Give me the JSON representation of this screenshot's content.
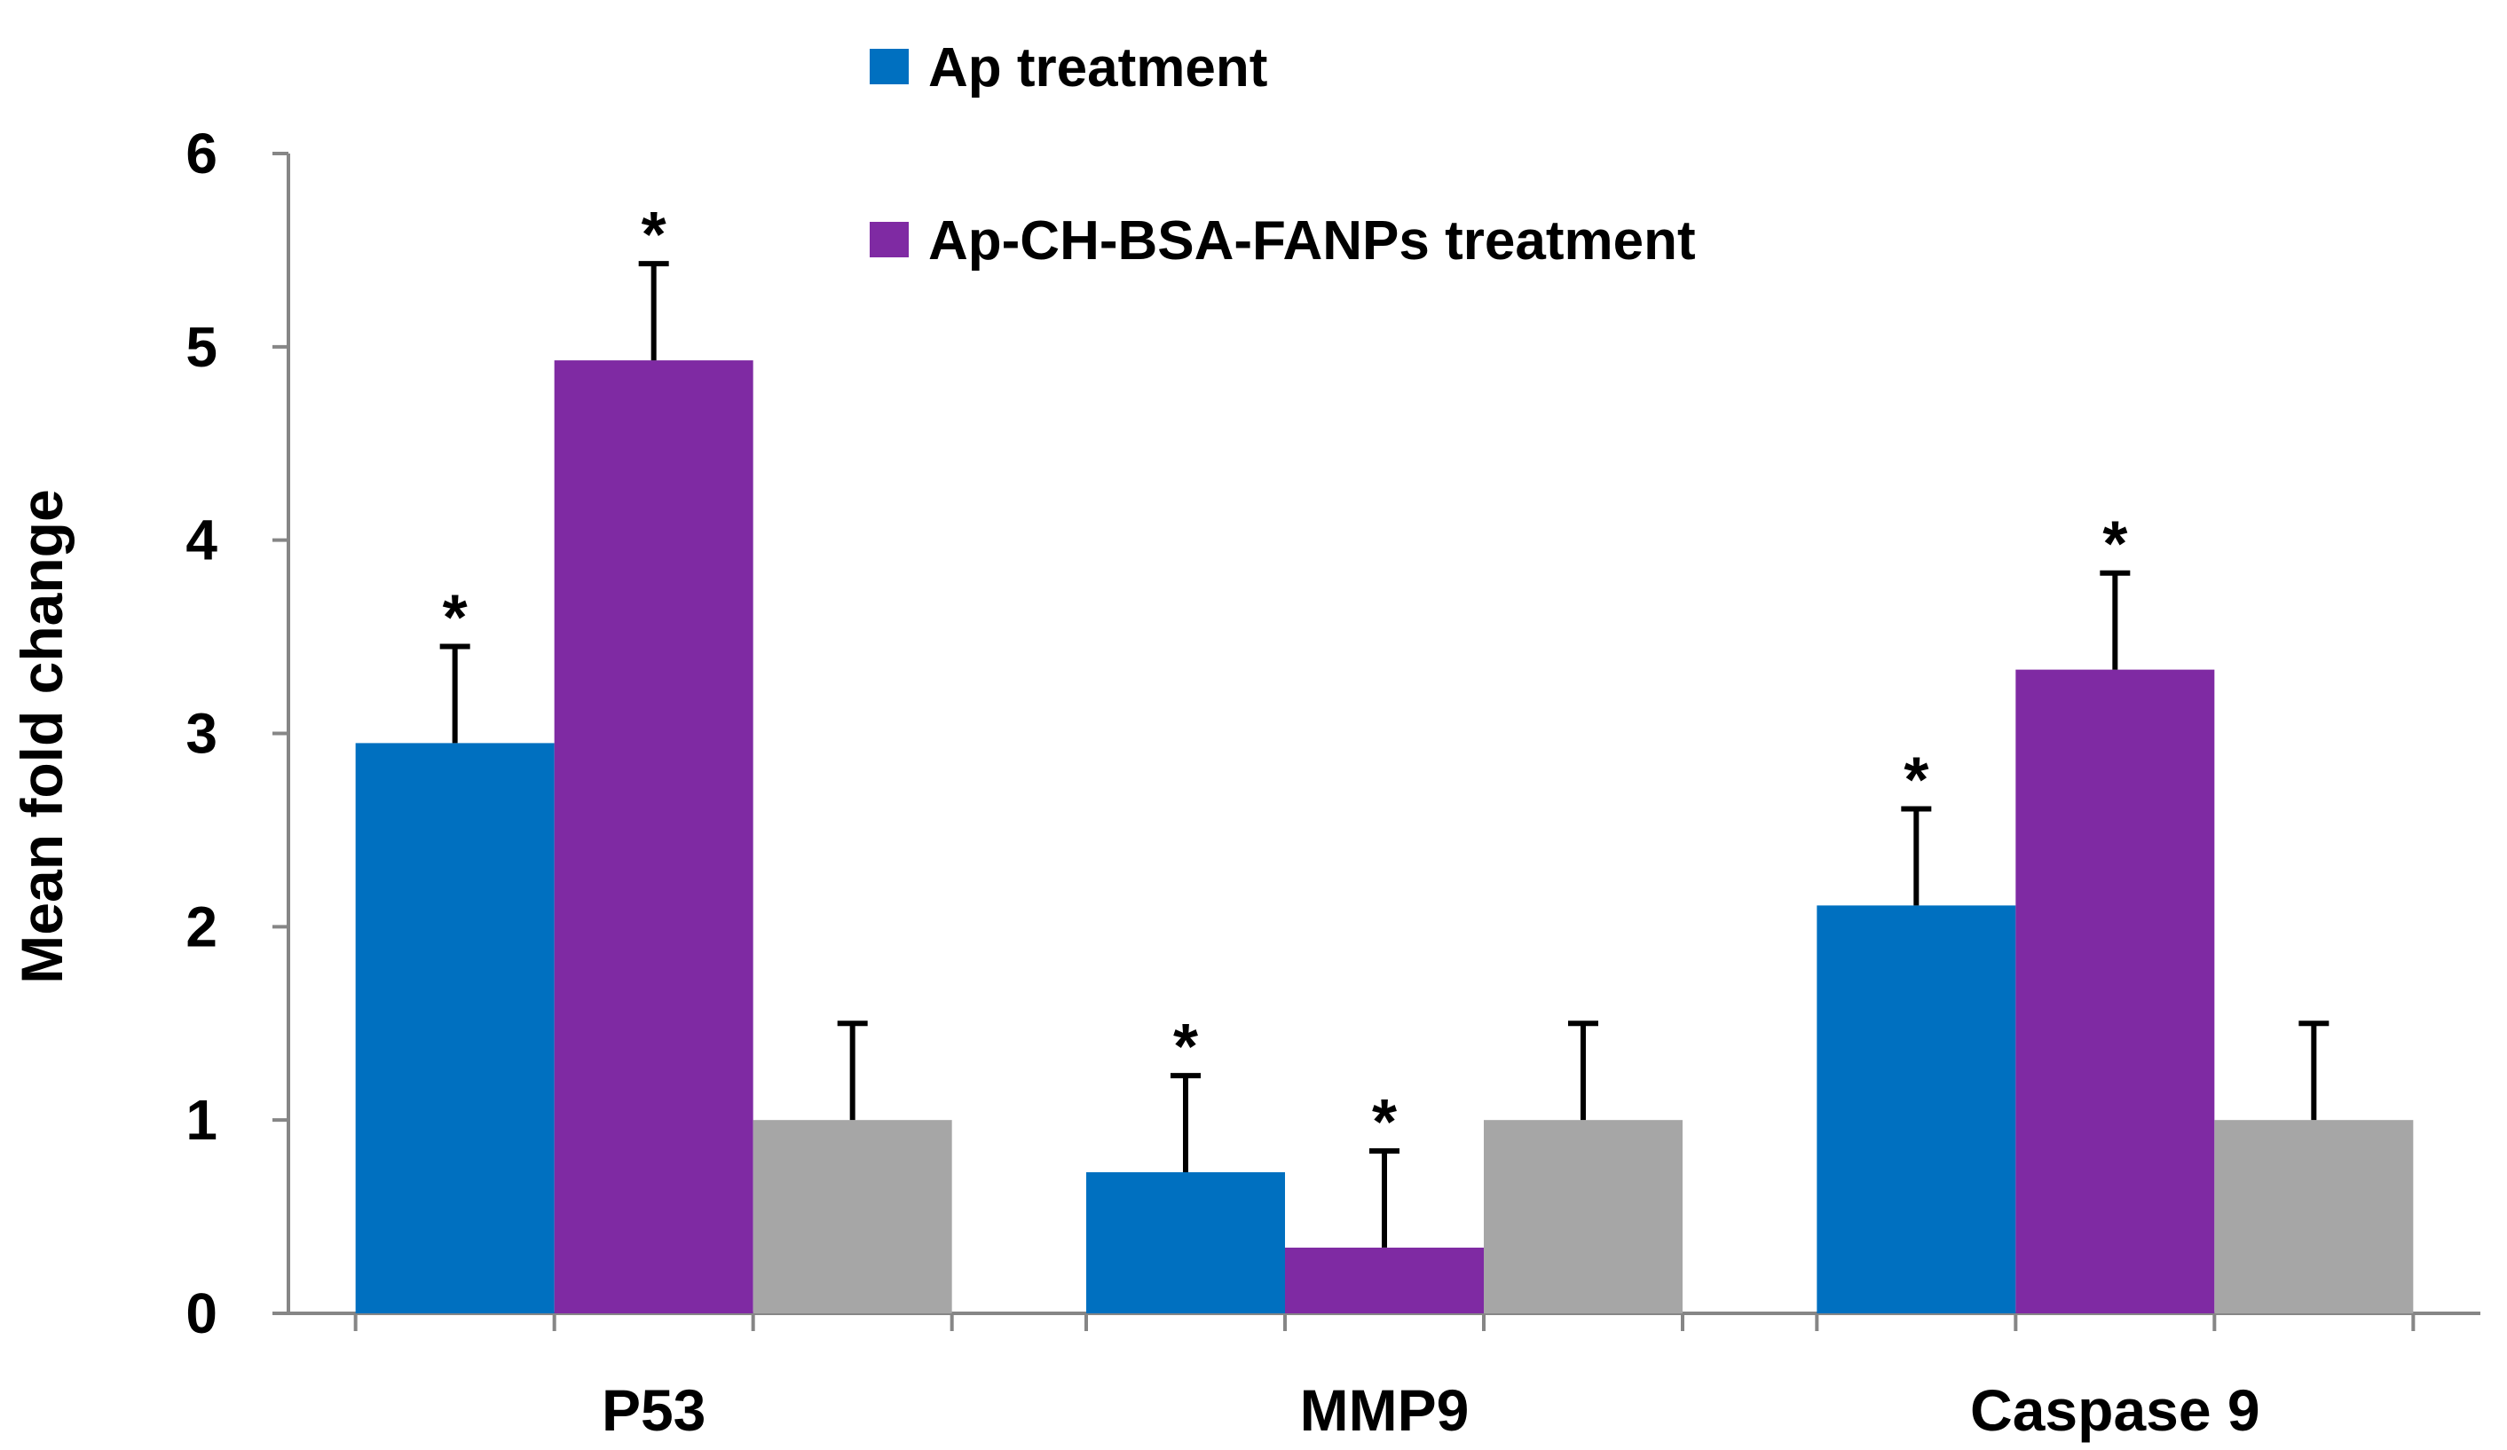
{
  "chart_data": {
    "type": "bar",
    "title": "",
    "xlabel": "",
    "ylabel": "Mean fold change",
    "ylim": [
      0,
      6
    ],
    "yticks": [
      0,
      1,
      2,
      3,
      4,
      5,
      6
    ],
    "grid": false,
    "legend_position": "top",
    "categories": [
      "P53",
      "MMP9",
      "Caspase 9"
    ],
    "series": [
      {
        "name": "Ap treatment",
        "color": "#0070C0",
        "values": [
          2.95,
          0.73,
          2.11
        ],
        "errors": [
          0.5,
          0.5,
          0.5
        ],
        "significant": [
          true,
          true,
          true
        ]
      },
      {
        "name": "Ap-CH-BSA-FANPs treatment",
        "color": "#7F2AA3",
        "values": [
          4.93,
          0.34,
          3.33
        ],
        "errors": [
          0.5,
          0.5,
          0.5
        ],
        "significant": [
          true,
          true,
          true
        ]
      },
      {
        "name": "",
        "color": "#A6A6A6",
        "values": [
          1.0,
          1.0,
          1.0
        ],
        "errors": [
          0.5,
          0.5,
          0.5
        ],
        "significant": [
          false,
          false,
          false
        ]
      }
    ],
    "significance_mark": "*"
  }
}
